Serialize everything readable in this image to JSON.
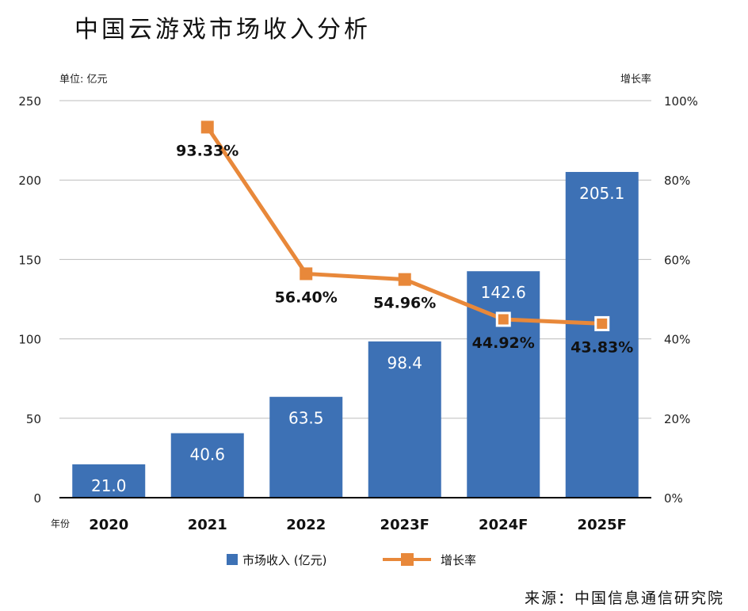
{
  "title": "中国云游戏市场收入分析",
  "source": "来源：中国信息通信研究院",
  "colors": {
    "bar": "#3d71b5",
    "line": "#e8883a",
    "grid": "#bdbdbd",
    "axis": "#000000",
    "bar_label": "#ffffff",
    "rate_label": "#111111"
  },
  "chart_data": {
    "type": "bar",
    "categories": [
      "2020",
      "2021",
      "2022",
      "2023F",
      "2024F",
      "2025F"
    ],
    "x_axis_title": "年份",
    "left_axis": {
      "unit_label": "单位: 亿元",
      "range": [
        0,
        250
      ],
      "ticks": [
        "0",
        "50",
        "100",
        "150",
        "200",
        "250"
      ]
    },
    "right_axis": {
      "unit_label": "增长率",
      "range": [
        0,
        100
      ],
      "ticks": [
        "0%",
        "20%",
        "40%",
        "60%",
        "80%",
        "100%"
      ]
    },
    "grid": true,
    "legend_position": "bottom",
    "series": [
      {
        "name": "市场收入 (亿元)",
        "type": "bar",
        "axis": "left",
        "values": [
          21.0,
          40.6,
          63.5,
          98.4,
          142.6,
          205.1
        ],
        "labels": [
          "21.0",
          "40.6",
          "63.5",
          "98.4",
          "142.6",
          "205.1"
        ]
      },
      {
        "name": "增长率",
        "type": "line",
        "axis": "right",
        "values": [
          null,
          93.33,
          56.4,
          54.96,
          44.92,
          43.83
        ],
        "labels": [
          "",
          "93.33%",
          "56.40%",
          "54.96%",
          "44.92%",
          "43.83%"
        ]
      }
    ]
  }
}
